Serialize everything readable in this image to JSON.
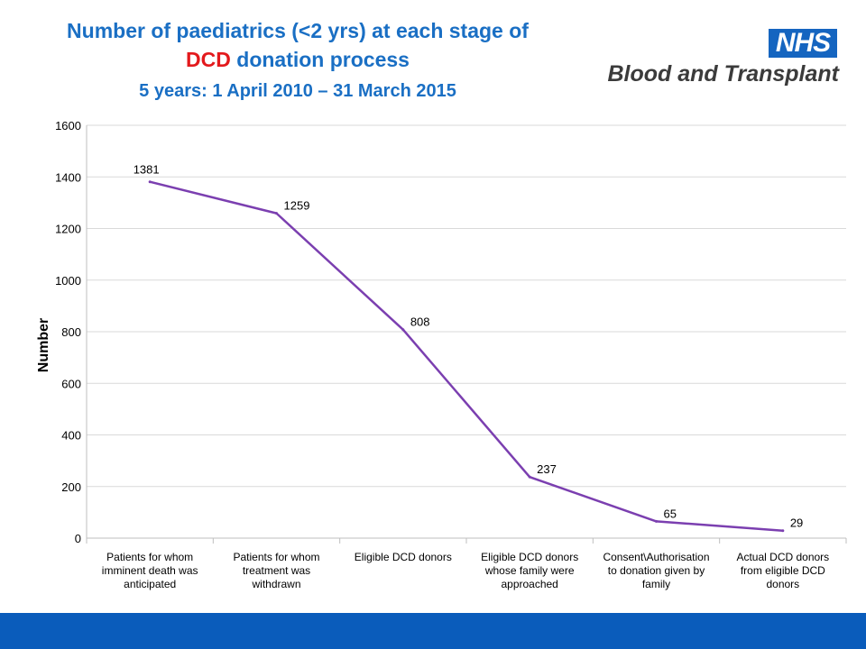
{
  "header": {
    "title_part1": "Number of paediatrics (<2 yrs) at each stage of",
    "title_red": "DCD",
    "title_part2": " donation process",
    "subtitle": "5 years: 1 April 2010 – 31 March 2015"
  },
  "logo": {
    "badge": "NHS",
    "text": "Blood and Transplant",
    "badge_color": "#1565c0"
  },
  "colors": {
    "title_blue": "#1a6fc4",
    "title_red": "#e3191c",
    "line": "#7b3fb0",
    "footer_bar": "#0a5cbb"
  },
  "chart_data": {
    "type": "line",
    "title": "",
    "xlabel": "",
    "ylabel": "Number",
    "ylim": [
      0,
      1600
    ],
    "yticks": [
      0,
      200,
      400,
      600,
      800,
      1000,
      1200,
      1400,
      1600
    ],
    "grid": true,
    "categories": [
      [
        "Patients for whom",
        "imminent death was",
        "anticipated"
      ],
      [
        "Patients for whom",
        "treatment was",
        "withdrawn"
      ],
      [
        "Eligible DCD donors"
      ],
      [
        "Eligible DCD donors",
        "whose family were",
        "approached"
      ],
      [
        "Consent\\Authorisation",
        "to donation given by",
        "family"
      ],
      [
        "Actual DCD donors",
        "from eligible DCD",
        "donors"
      ]
    ],
    "series": [
      {
        "values": [
          1381,
          1259,
          808,
          237,
          65,
          29
        ]
      }
    ]
  }
}
